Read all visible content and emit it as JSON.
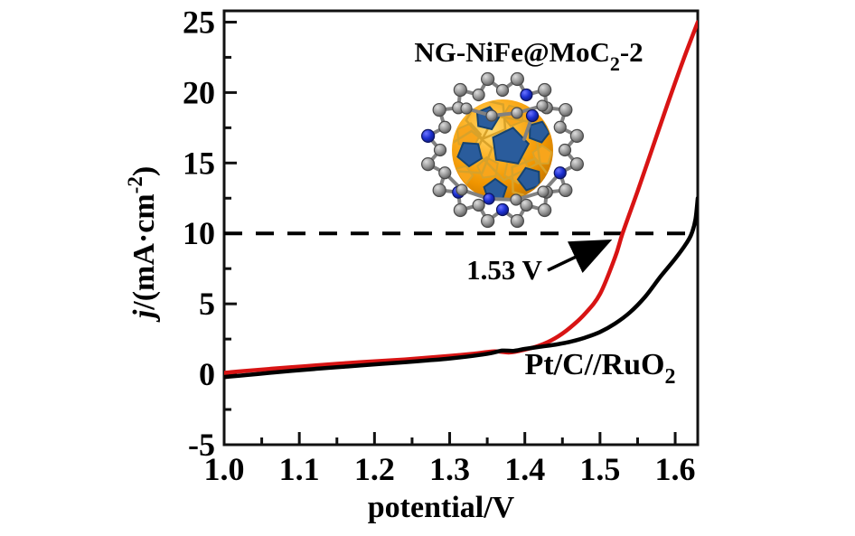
{
  "figure": {
    "background": "#ffffff",
    "frame_color": "#111111"
  },
  "chart_data": {
    "type": "line",
    "title": "",
    "xlabel": "potential/V",
    "ylabel": "j/(mA·cm⁻²)",
    "ylabel_parts": {
      "italic": "j",
      "main": "/(mA·cm",
      "sup": "-2",
      "end": ")"
    },
    "xlim": [
      1.0,
      1.63
    ],
    "ylim": [
      -5,
      25.8
    ],
    "grid": false,
    "x_major_ticks": [
      1.0,
      1.1,
      1.2,
      1.3,
      1.4,
      1.5,
      1.6
    ],
    "x_tick_labels": [
      "1.0",
      "1.1",
      "1.2",
      "1.3",
      "1.4",
      "1.5",
      "1.6"
    ],
    "x_minor_ticks": [
      1.05,
      1.15,
      1.25,
      1.35,
      1.45,
      1.55
    ],
    "y_major_ticks": [
      -5,
      0,
      5,
      10,
      15,
      20,
      25
    ],
    "y_tick_labels": [
      "-5",
      "0",
      "5",
      "10",
      "15",
      "20",
      "25"
    ],
    "y_minor_ticks": [
      -2.5,
      2.5,
      7.5,
      12.5,
      17.5,
      22.5
    ],
    "series": [
      {
        "name": "NG-NiFe@MoC₂-2",
        "label_parts": {
          "main": "NG-NiFe@MoC",
          "sub": "2",
          "end": "-2"
        },
        "color": "#d81414",
        "x": [
          1.0,
          1.03,
          1.06,
          1.09,
          1.12,
          1.15,
          1.18,
          1.21,
          1.24,
          1.27,
          1.3,
          1.33,
          1.36,
          1.38,
          1.4,
          1.42,
          1.44,
          1.46,
          1.48,
          1.5,
          1.52,
          1.53,
          1.55,
          1.57,
          1.59,
          1.61,
          1.63
        ],
        "y": [
          0.1,
          0.25,
          0.38,
          0.5,
          0.62,
          0.74,
          0.85,
          0.95,
          1.05,
          1.18,
          1.3,
          1.45,
          1.62,
          1.55,
          1.75,
          2.05,
          2.55,
          3.3,
          4.3,
          5.7,
          8.3,
          10.0,
          13.0,
          16.1,
          19.2,
          22.2,
          25.0
        ]
      },
      {
        "name": "Pt/C//RuO₂",
        "label_parts": {
          "main": "Pt/C//RuO",
          "sub": "2",
          "end": ""
        },
        "color": "#000000",
        "x": [
          1.0,
          1.03,
          1.06,
          1.09,
          1.12,
          1.15,
          1.18,
          1.21,
          1.24,
          1.27,
          1.3,
          1.33,
          1.355,
          1.37,
          1.385,
          1.4,
          1.42,
          1.44,
          1.46,
          1.48,
          1.5,
          1.52,
          1.54,
          1.56,
          1.58,
          1.6,
          1.615,
          1.622,
          1.627,
          1.63
        ],
        "y": [
          -0.2,
          -0.05,
          0.1,
          0.25,
          0.38,
          0.5,
          0.62,
          0.74,
          0.86,
          0.98,
          1.12,
          1.3,
          1.5,
          1.68,
          1.66,
          1.8,
          1.95,
          2.1,
          2.3,
          2.6,
          3.0,
          3.6,
          4.4,
          5.5,
          6.9,
          8.2,
          9.3,
          10.0,
          11.0,
          12.5
        ]
      }
    ],
    "reference_line": {
      "y": 10,
      "style": "dashed",
      "color": "#000000"
    },
    "annotation": {
      "text": "1.53 V",
      "arrow_to": {
        "x": 1.53,
        "y": 10
      }
    },
    "inset": {
      "description": "ball-and-stick molecular model: N-doped graphene fullerene cage around orange/blue MoC2 core",
      "colors": {
        "carbon": "#969696",
        "nitrogen": "#1b2fd0",
        "core_orange": "#f79b00",
        "core_blue": "#2a5c9c",
        "seam_gold": "#d8a22a"
      }
    }
  }
}
